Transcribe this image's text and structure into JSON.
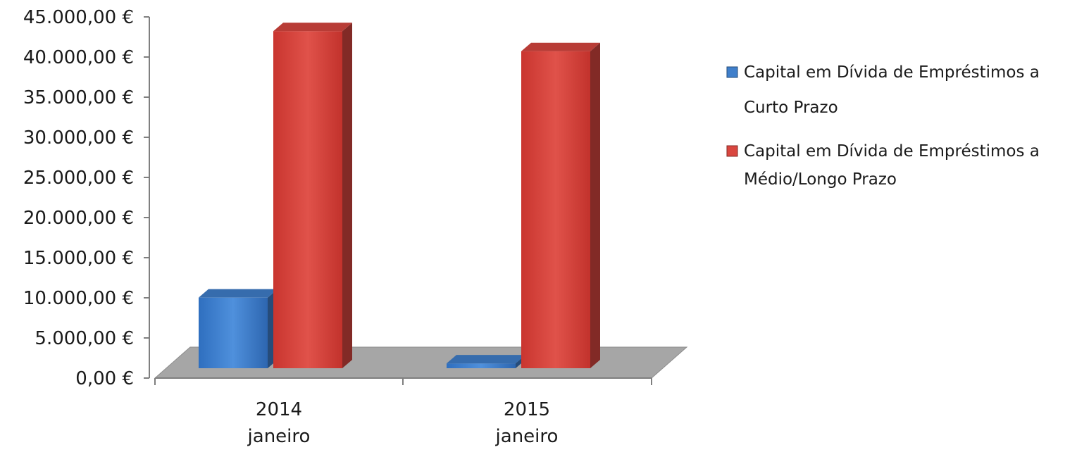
{
  "chart_data": {
    "type": "bar",
    "title": "",
    "xlabel": "",
    "ylabel": "",
    "categories": [
      {
        "year": "2014",
        "month": "janeiro"
      },
      {
        "year": "2015",
        "month": "janeiro"
      }
    ],
    "series": [
      {
        "name_lines": [
          "Capital em Dívida de Empréstimos a",
          "Curto Prazo"
        ],
        "color": "#3f7fcb",
        "values": [
          8800,
          600
        ]
      },
      {
        "name_lines": [
          "Capital em Dívida de Empréstimos a",
          "Médio/Longo Prazo"
        ],
        "color": "#d9463f",
        "values": [
          42000,
          39500
        ]
      }
    ],
    "ylim": [
      0,
      45000
    ],
    "yticks": [
      "0,00 €",
      "5.000,00 €",
      "10.000,00 €",
      "15.000,00 €",
      "20.000,00 €",
      "25.000,00 €",
      "30.000,00 €",
      "35.000,00 €",
      "40.000,00 €",
      "45.000,00 €"
    ],
    "grid": false,
    "legend": "right",
    "style": "3d-column"
  }
}
